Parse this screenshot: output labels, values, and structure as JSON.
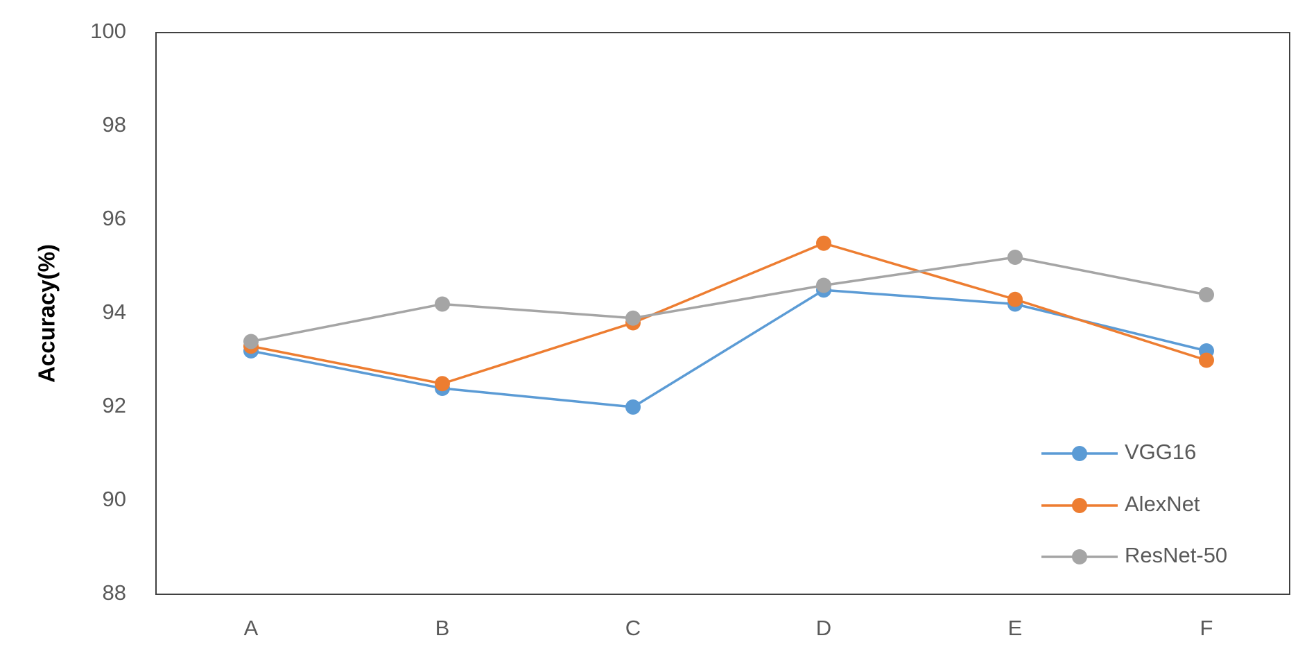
{
  "chart_data": {
    "type": "line",
    "title": "",
    "xlabel": "",
    "ylabel": "Accuracy(%)",
    "categories": [
      "A",
      "B",
      "C",
      "D",
      "E",
      "F"
    ],
    "ylim": [
      88,
      100
    ],
    "yticks": [
      88,
      90,
      92,
      94,
      96,
      98,
      100
    ],
    "grid": false,
    "legend_position": "bottom-right",
    "series": [
      {
        "name": "VGG16",
        "color": "#5B9BD5",
        "values": [
          93.2,
          92.4,
          92.0,
          94.5,
          94.2,
          93.2
        ]
      },
      {
        "name": "AlexNet",
        "color": "#ED7D31",
        "values": [
          93.3,
          92.5,
          93.8,
          95.5,
          94.3,
          93.0
        ]
      },
      {
        "name": "ResNet-50",
        "color": "#A5A5A5",
        "values": [
          93.4,
          94.2,
          93.9,
          94.6,
          95.2,
          94.4
        ]
      }
    ]
  }
}
